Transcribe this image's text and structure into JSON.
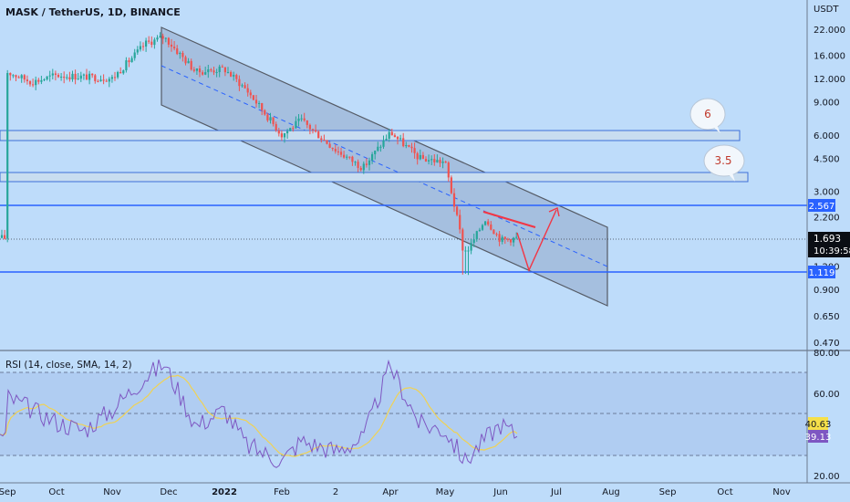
{
  "colors": {
    "background": "#bedcfa",
    "up": "#26a69a",
    "down": "#ef5350",
    "channel_fill": "#8fa8c8",
    "channel_edge": "#555b66",
    "hline": "#2962ff",
    "zone_fill": "#c8ddf0",
    "zone_edge": "#3d6fd8",
    "projection": "#f23645",
    "rsi_line": "#7e57c2",
    "rsi_sma": "#f0d254",
    "rsi_band": "#a9c4ee",
    "axis_text": "#131722",
    "price_tag_bg": "#0b0e14",
    "level_tag_bg": "#2962ff",
    "rsi_tag_bg": "#7e57c2",
    "sma_tag_bg": "#f5e049"
  },
  "header": {
    "title": "MASK / TetherUS, 1D, BINANCE",
    "currency": "USDT"
  },
  "chart_data": [
    {
      "type": "candlestick",
      "title": "MASK / TetherUS, 1D, BINANCE",
      "y_unit": "USDT",
      "y_scale": "log",
      "y_ticks": [
        "22.000",
        "16.000",
        "12.000",
        "9.000",
        "6.000",
        "4.500",
        "3.000",
        "2.200",
        "1.200",
        "0.900",
        "0.650",
        "0.470"
      ],
      "x_ticks": [
        "Sep",
        "Oct",
        "Nov",
        "Dec",
        "2022",
        "Feb",
        "2",
        "Apr",
        "May",
        "Jun",
        "Jul",
        "Aug",
        "Sep",
        "Oct",
        "Nov"
      ],
      "last_price": "1.693",
      "countdown": "10:39:58",
      "levels": [
        {
          "value": 2.567,
          "label": "2.567"
        },
        {
          "value": 1.119,
          "label": "1.119"
        }
      ],
      "zones": [
        {
          "low": 5.7,
          "high": 6.4,
          "label": "6"
        },
        {
          "low": 3.5,
          "high": 3.95,
          "label": "3.5"
        }
      ],
      "channel": {
        "upper": [
          [
            "Dec",
            22.0
          ],
          [
            "Aug",
            2.0
          ]
        ],
        "lower": [
          [
            "Dec",
            8.8
          ],
          [
            "Aug",
            0.75
          ]
        ]
      },
      "price_path": [
        [
          "Sep",
          13.0
        ],
        [
          "mid-Sep",
          11.5
        ],
        [
          "Oct",
          12.5
        ],
        [
          "Nov",
          12.0
        ],
        [
          "late-Nov",
          18.5
        ],
        [
          "Dec",
          20.0
        ],
        [
          "mid-Dec",
          13.0
        ],
        [
          "2022",
          13.5
        ],
        [
          "Jan",
          10.5
        ],
        [
          "Feb",
          6.0
        ],
        [
          "mid-Feb",
          7.2
        ],
        [
          "2",
          5.0
        ],
        [
          "mid-Mar",
          4.0
        ],
        [
          "Apr",
          6.2
        ],
        [
          "mid-Apr",
          4.5
        ],
        [
          "May",
          4.3
        ],
        [
          "mid-May",
          1.35
        ],
        [
          "late-May",
          2.15
        ],
        [
          "Jun",
          1.65
        ],
        [
          "now",
          1.693
        ]
      ],
      "projection": [
        [
          "now",
          2.0
        ],
        [
          "late-Jun",
          1.0
        ],
        [
          "Jul",
          2.567
        ]
      ]
    },
    {
      "type": "line",
      "title": "RSI (14, close, SMA, 14, 2)",
      "y_ticks": [
        "80.00",
        "60.00",
        "20.00"
      ],
      "band": [
        30,
        70
      ],
      "midline": 50,
      "series": [
        {
          "name": "RSI",
          "value": 39.13
        },
        {
          "name": "SMA",
          "value": 40.63
        }
      ],
      "rsi_path": [
        [
          "Sep",
          58
        ],
        [
          "mid-Sep",
          52
        ],
        [
          "Oct",
          46
        ],
        [
          "mid-Oct",
          42
        ],
        [
          "Nov",
          52
        ],
        [
          "late-Nov",
          68
        ],
        [
          "Dec",
          74
        ],
        [
          "mid-Dec",
          44
        ],
        [
          "2022",
          52
        ],
        [
          "Jan",
          35
        ],
        [
          "Feb",
          27
        ],
        [
          "mid-Feb",
          37
        ],
        [
          "2",
          32
        ],
        [
          "mid-Mar",
          38
        ],
        [
          "Apr",
          73
        ],
        [
          "mid-Apr",
          45
        ],
        [
          "May",
          42
        ],
        [
          "mid-May",
          27
        ],
        [
          "late-May",
          38
        ],
        [
          "Jun",
          45
        ],
        [
          "now",
          39.13
        ]
      ]
    }
  ]
}
